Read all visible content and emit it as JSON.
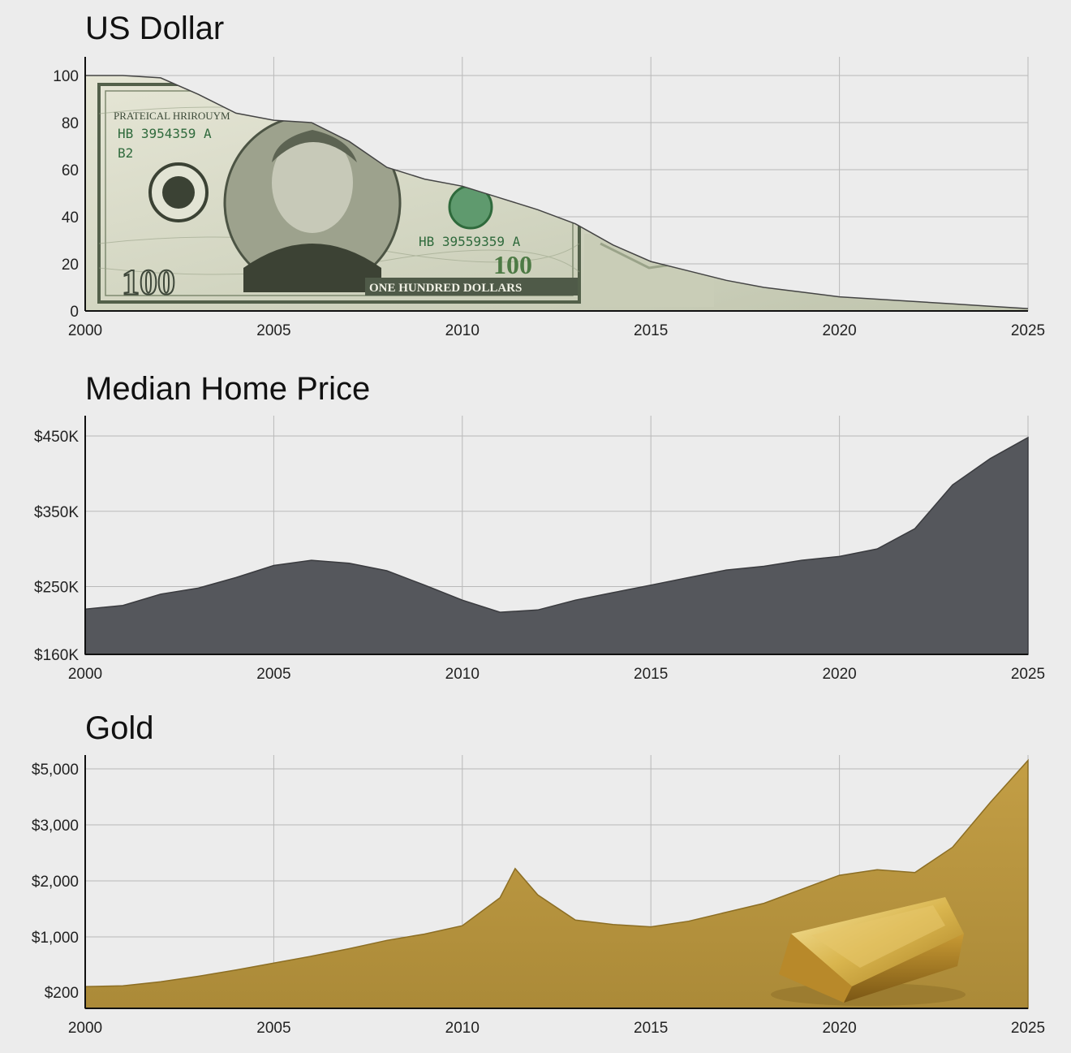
{
  "chart_data": [
    {
      "type": "area",
      "title": "US Dollar",
      "x": [
        2000,
        2001,
        2002,
        2003,
        2004,
        2005,
        2006,
        2007,
        2008,
        2009,
        2010,
        2011,
        2012,
        2013,
        2014,
        2015,
        2016,
        2017,
        2018,
        2019,
        2020,
        2021,
        2022,
        2023,
        2024,
        2025
      ],
      "series": [
        {
          "values": [
            100,
            100,
            99,
            92,
            84,
            81,
            80,
            72,
            61,
            56,
            53,
            48,
            43,
            37,
            28,
            21,
            17,
            13,
            10,
            8,
            6,
            5,
            4,
            3,
            2,
            1
          ]
        }
      ],
      "xticks": [
        "2000",
        "2005",
        "2010",
        "2015",
        "2020",
        "2025"
      ],
      "yticks": [
        "0",
        "20",
        "40",
        "60",
        "80",
        "100"
      ],
      "ylim": [
        0,
        100
      ],
      "fill": "banknote",
      "banknote_text": {
        "top_line": "PRATEICAL HRIROUYM",
        "serial_left": "HB 3954359 A",
        "code": "B2",
        "serial_right": "HB 39559359 A",
        "denomination": "100",
        "banner": "ONE HUNDRED DOLLARS"
      },
      "grid": true
    },
    {
      "type": "area",
      "title": "Median Home Price",
      "x": [
        2000,
        2001,
        2002,
        2003,
        2004,
        2005,
        2006,
        2007,
        2008,
        2009,
        2010,
        2011,
        2012,
        2013,
        2014,
        2015,
        2016,
        2017,
        2018,
        2019,
        2020,
        2021,
        2022,
        2023,
        2024,
        2025
      ],
      "series": [
        {
          "values": [
            220,
            225,
            240,
            248,
            262,
            278,
            285,
            281,
            271,
            252,
            232,
            216,
            219,
            232,
            242,
            252,
            262,
            272,
            277,
            285,
            290,
            300,
            327,
            385,
            420,
            448
          ]
        }
      ],
      "xticks": [
        "2000",
        "2005",
        "2010",
        "2015",
        "2020",
        "2025"
      ],
      "yticks": [
        "$160K",
        "$250K",
        "$350K",
        "$450K"
      ],
      "ylim": [
        160,
        450
      ],
      "color": "#55575c",
      "grid": true
    },
    {
      "type": "area",
      "title": "Gold",
      "x": [
        2000,
        2001,
        2002,
        2003,
        2004,
        2005,
        2006,
        2007,
        2008,
        2009,
        2010,
        2011,
        2011.4,
        2012,
        2013,
        2014,
        2015,
        2016,
        2017,
        2018,
        2019,
        2020,
        2021,
        2022,
        2023,
        2024,
        2025
      ],
      "series": [
        {
          "values": [
            280,
            290,
            350,
            430,
            520,
            620,
            720,
            830,
            950,
            1050,
            1200,
            1700,
            2220,
            1750,
            1300,
            1220,
            1180,
            1280,
            1440,
            1600,
            1850,
            2100,
            2200,
            2150,
            2600,
            3800,
            5300
          ]
        }
      ],
      "xticks": [
        "2000",
        "2005",
        "2010",
        "2015",
        "2020",
        "2025"
      ],
      "yticks": [
        "$200",
        "$1,000",
        "$2,000",
        "$3,000",
        "$5,000"
      ],
      "ytick_values": [
        200,
        1000,
        2000,
        3000,
        5000
      ],
      "ylim": [
        0,
        5400
      ],
      "color": "#b8963e",
      "grid": true
    }
  ]
}
